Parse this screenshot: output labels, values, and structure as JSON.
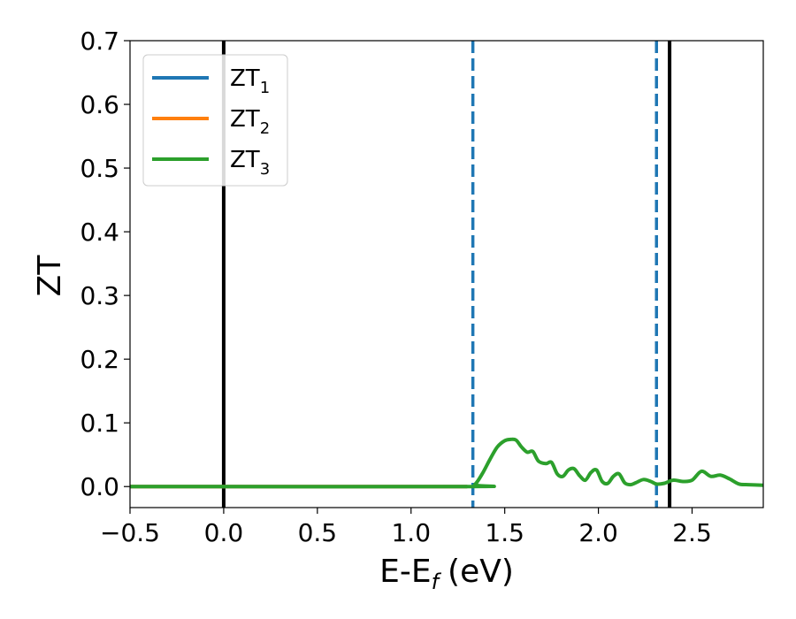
{
  "chart_data": {
    "type": "line",
    "xlabel": "E-E",
    "xlabel_sub": "f",
    "xlabel_unit": "(eV)",
    "ylabel": "ZT",
    "xlim": [
      -0.5,
      2.88
    ],
    "ylim": [
      -0.033,
      0.7
    ],
    "x_ticks": [
      -0.5,
      0.0,
      0.5,
      1.0,
      1.5,
      2.0,
      2.5
    ],
    "x_tick_labels": [
      "−0.5",
      "0.0",
      "0.5",
      "1.0",
      "1.5",
      "2.0",
      "2.5"
    ],
    "y_ticks": [
      0.0,
      0.1,
      0.2,
      0.3,
      0.4,
      0.5,
      0.6,
      0.7
    ],
    "y_tick_labels": [
      "0.0",
      "0.1",
      "0.2",
      "0.3",
      "0.4",
      "0.5",
      "0.6",
      "0.7"
    ],
    "grid": false,
    "legend_position": "top-left",
    "series": [
      {
        "name": "ZT",
        "sub": "1",
        "color": "#1f77b4",
        "x": [
          -0.5,
          1.3
        ],
        "y": [
          0.0,
          0.0
        ]
      },
      {
        "name": "ZT",
        "sub": "2",
        "color": "#ff7f0e",
        "x": [
          -0.5,
          1.3
        ],
        "y": [
          0.0,
          0.0
        ]
      },
      {
        "name": "ZT",
        "sub": "3",
        "color": "#2ca02c",
        "x": [
          -0.5,
          1.3,
          1.34,
          1.38,
          1.42,
          1.46,
          1.5,
          1.53,
          1.56,
          1.59,
          1.62,
          1.65,
          1.68,
          1.72,
          1.75,
          1.78,
          1.81,
          1.84,
          1.87,
          1.9,
          1.93,
          1.96,
          1.99,
          2.02,
          2.05,
          2.08,
          2.11,
          2.14,
          2.17,
          2.2,
          2.24,
          2.28,
          2.31,
          2.35,
          2.4,
          2.45,
          2.5,
          2.55,
          2.6,
          2.65,
          2.7,
          2.75,
          2.8,
          2.88
        ],
        "y": [
          0.0,
          0.0,
          0.003,
          0.02,
          0.042,
          0.062,
          0.072,
          0.074,
          0.073,
          0.062,
          0.054,
          0.055,
          0.04,
          0.036,
          0.038,
          0.02,
          0.016,
          0.026,
          0.028,
          0.017,
          0.01,
          0.022,
          0.026,
          0.008,
          0.005,
          0.016,
          0.02,
          0.006,
          0.003,
          0.006,
          0.011,
          0.008,
          0.004,
          0.005,
          0.01,
          0.008,
          0.01,
          0.024,
          0.016,
          0.018,
          0.012,
          0.004,
          0.003,
          0.002
        ]
      }
    ],
    "vlines": [
      {
        "x": 0.0,
        "style": "solid",
        "color": "#000000"
      },
      {
        "x": 2.38,
        "style": "solid",
        "color": "#000000"
      },
      {
        "x": 1.33,
        "style": "dashed",
        "color": "#1f77b4"
      },
      {
        "x": 2.31,
        "style": "dashed",
        "color": "#1f77b4"
      }
    ]
  }
}
